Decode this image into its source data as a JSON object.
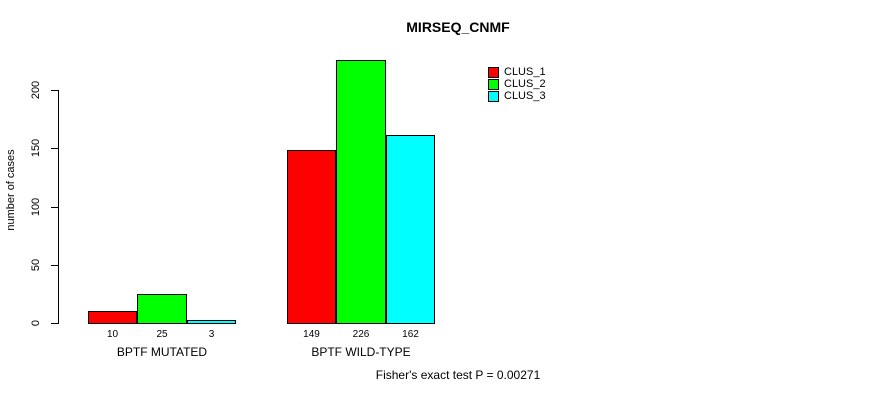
{
  "title": "MIRSEQ_CNMF",
  "colors": {
    "background": "#ffffff",
    "axis": "#000000",
    "text": "#000000",
    "clus_1": "#ff0000",
    "clus_2": "#00ff00",
    "clus_3": "#00ffff"
  },
  "legend": {
    "position": "top-right",
    "entries": [
      "CLUS_1",
      "CLUS_2",
      "CLUS_3"
    ]
  },
  "footer": {
    "annotation": "Fisher's exact test P = 0.00271"
  },
  "chart_data": {
    "type": "bar",
    "title": "MIRSEQ_CNMF",
    "xlabel": "",
    "ylabel": "number of cases",
    "categories": [
      "BPTF MUTATED",
      "BPTF WILD-TYPE"
    ],
    "series": [
      {
        "name": "CLUS_1",
        "color": "#ff0000",
        "values": [
          10,
          149
        ]
      },
      {
        "name": "CLUS_2",
        "color": "#00ff00",
        "values": [
          25,
          226
        ]
      },
      {
        "name": "CLUS_3",
        "color": "#00ffff",
        "values": [
          3,
          162
        ]
      }
    ],
    "bar_value_labels": [
      [
        "10",
        "25",
        "3"
      ],
      [
        "149",
        "226",
        "162"
      ]
    ],
    "ylim": [
      0,
      200
    ],
    "yticks": [
      0,
      50,
      100,
      150,
      200
    ],
    "grid": false,
    "legend_position": "top-right",
    "annotation": "Fisher's exact test P = 0.00271"
  }
}
